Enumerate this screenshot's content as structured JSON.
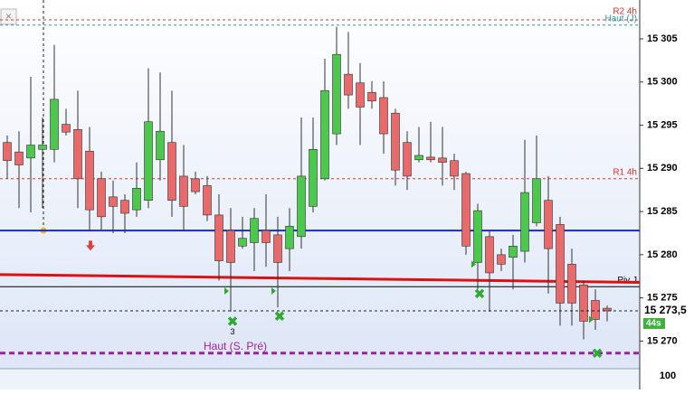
{
  "chart_data": {
    "type": "candlestick",
    "ylim": [
      15266.8,
      15309.5
    ],
    "yticks": [
      {
        "value": 15305,
        "label": "15 305"
      },
      {
        "value": 15300,
        "label": "15 300"
      },
      {
        "value": 15295,
        "label": "15 295"
      },
      {
        "value": 15290,
        "label": "15 290"
      },
      {
        "value": 15285,
        "label": "15 285"
      },
      {
        "value": 15280,
        "label": "15 280"
      },
      {
        "value": 15275,
        "label": "15 275"
      },
      {
        "value": 15270,
        "label": "15 270"
      }
    ],
    "up_color": "#4cc94c",
    "down_color": "#e86a6a",
    "open": [
      15293.0,
      15291.9,
      15291.2,
      15292.2,
      15292.2,
      15295.1,
      15294.5,
      15292.0,
      15288.8,
      15286.7,
      15286.3,
      15285.2,
      15286.3,
      15291.0,
      15293.0,
      15289.1,
      15288.8,
      15288.0,
      15284.6,
      15282.8,
      15281.0,
      15281.4,
      15282.8,
      15282.3,
      15280.7,
      15282.1,
      15285.6,
      15288.8,
      15294.0,
      15300.9,
      15299.9,
      15298.8,
      15298.2,
      15296.4,
      15293.0,
      15291.0,
      15291.3,
      15291.2,
      15290.9,
      15289.4,
      15279.1,
      15282.1,
      15280.0,
      15279.7,
      15280.4,
      15283.7,
      15286.3,
      15283.5,
      15278.9,
      15276.5,
      15274.7,
      15273.8
    ],
    "high": [
      15293.8,
      15294.3,
      15300.6,
      15295.9,
      15304.3,
      15296.9,
      15299.0,
      15294.8,
      15289.6,
      15288.6,
      15287.0,
      15290.7,
      15301.6,
      15301.1,
      15299.0,
      15292.7,
      15289.6,
      15289.1,
      15287.0,
      15285.4,
      15284.4,
      15285.4,
      15287.0,
      15284.4,
      15285.4,
      15295.9,
      15295.9,
      15302.7,
      15306.4,
      15305.8,
      15302.2,
      15300.1,
      15300.1,
      15296.9,
      15294.3,
      15294.8,
      15295.4,
      15294.8,
      15291.7,
      15289.6,
      15285.9,
      15282.8,
      15280.7,
      15282.3,
      15293.3,
      15293.8,
      15289.1,
      15284.4,
      15280.7,
      15277.0,
      15276.0,
      15274.1
    ],
    "low": [
      15288.8,
      15285.4,
      15284.9,
      15285.4,
      15290.7,
      15293.8,
      15285.4,
      15282.8,
      15282.8,
      15282.5,
      15282.5,
      15284.4,
      15285.4,
      15288.6,
      15284.4,
      15282.8,
      15287.0,
      15283.9,
      15277.0,
      15273.4,
      15280.7,
      15278.1,
      15278.6,
      15273.9,
      15278.1,
      15280.7,
      15284.9,
      15288.6,
      15292.7,
      15296.9,
      15292.7,
      15296.9,
      15291.7,
      15288.0,
      15287.5,
      15290.7,
      15290.7,
      15288.0,
      15287.5,
      15280.0,
      15276.0,
      15273.4,
      15278.1,
      15276.0,
      15279.1,
      15283.3,
      15275.5,
      15271.8,
      15271.8,
      15270.2,
      15271.3,
      15272.3
    ],
    "close": [
      15290.9,
      15290.4,
      15292.7,
      15292.7,
      15298.0,
      15294.2,
      15288.8,
      15285.2,
      15284.4,
      15285.6,
      15284.8,
      15287.7,
      15295.4,
      15294.3,
      15286.3,
      15285.6,
      15287.3,
      15284.6,
      15279.3,
      15279.1,
      15281.9,
      15284.2,
      15281.4,
      15279.1,
      15283.3,
      15289.1,
      15292.2,
      15299.0,
      15303.2,
      15298.5,
      15297.1,
      15297.8,
      15294.0,
      15289.8,
      15289.1,
      15291.5,
      15291.0,
      15290.7,
      15289.1,
      15281.0,
      15285.1,
      15277.9,
      15278.9,
      15281.0,
      15287.2,
      15288.8,
      15280.7,
      15274.4,
      15274.4,
      15272.3,
      15272.5,
      15273.5
    ],
    "levels": [
      {
        "label": "R2 4h",
        "value": 15307.2,
        "color": "#e03030",
        "style": "dashed"
      },
      {
        "label": "Haut (J)",
        "value": 15306.6,
        "color": "#2a9aa8",
        "style": "dashed"
      },
      {
        "label": "R1 4h",
        "value": 15288.8,
        "color": "#e03030",
        "style": "dashed"
      },
      {
        "value": 15282.8,
        "color": "#1a2fb0",
        "style": "solid"
      },
      {
        "label": "Piv J",
        "value": 15276.3,
        "color": "#000000",
        "style": "solid"
      },
      {
        "label": "Haut (S. Pré)",
        "value": 15268.6,
        "color": "#a020a0",
        "style": "thick-dashed"
      }
    ],
    "trendline": {
      "start": 15277.7,
      "end": 15276.8,
      "color": "#e01010"
    },
    "crosses": [
      {
        "candle": 19,
        "value": 15272.3,
        "label": "3"
      },
      {
        "candle": 23,
        "value": 15272.9
      },
      {
        "candle": 40,
        "value": 15275.5
      },
      {
        "candle": 50,
        "value": 15268.6
      }
    ],
    "triangles": [
      {
        "candle": 19,
        "value": 15275.8
      },
      {
        "candle": 23,
        "value": 15275.8
      },
      {
        "candle": 40,
        "value": 15278.9
      },
      {
        "candle": 50,
        "value": 15272.5
      }
    ],
    "arrows": [
      {
        "candle": 7,
        "value": 15281.0
      }
    ],
    "current": {
      "value": 15273.5,
      "label": "15 273,5",
      "timer": "44s"
    },
    "lower_panel": {
      "label": "100"
    }
  }
}
